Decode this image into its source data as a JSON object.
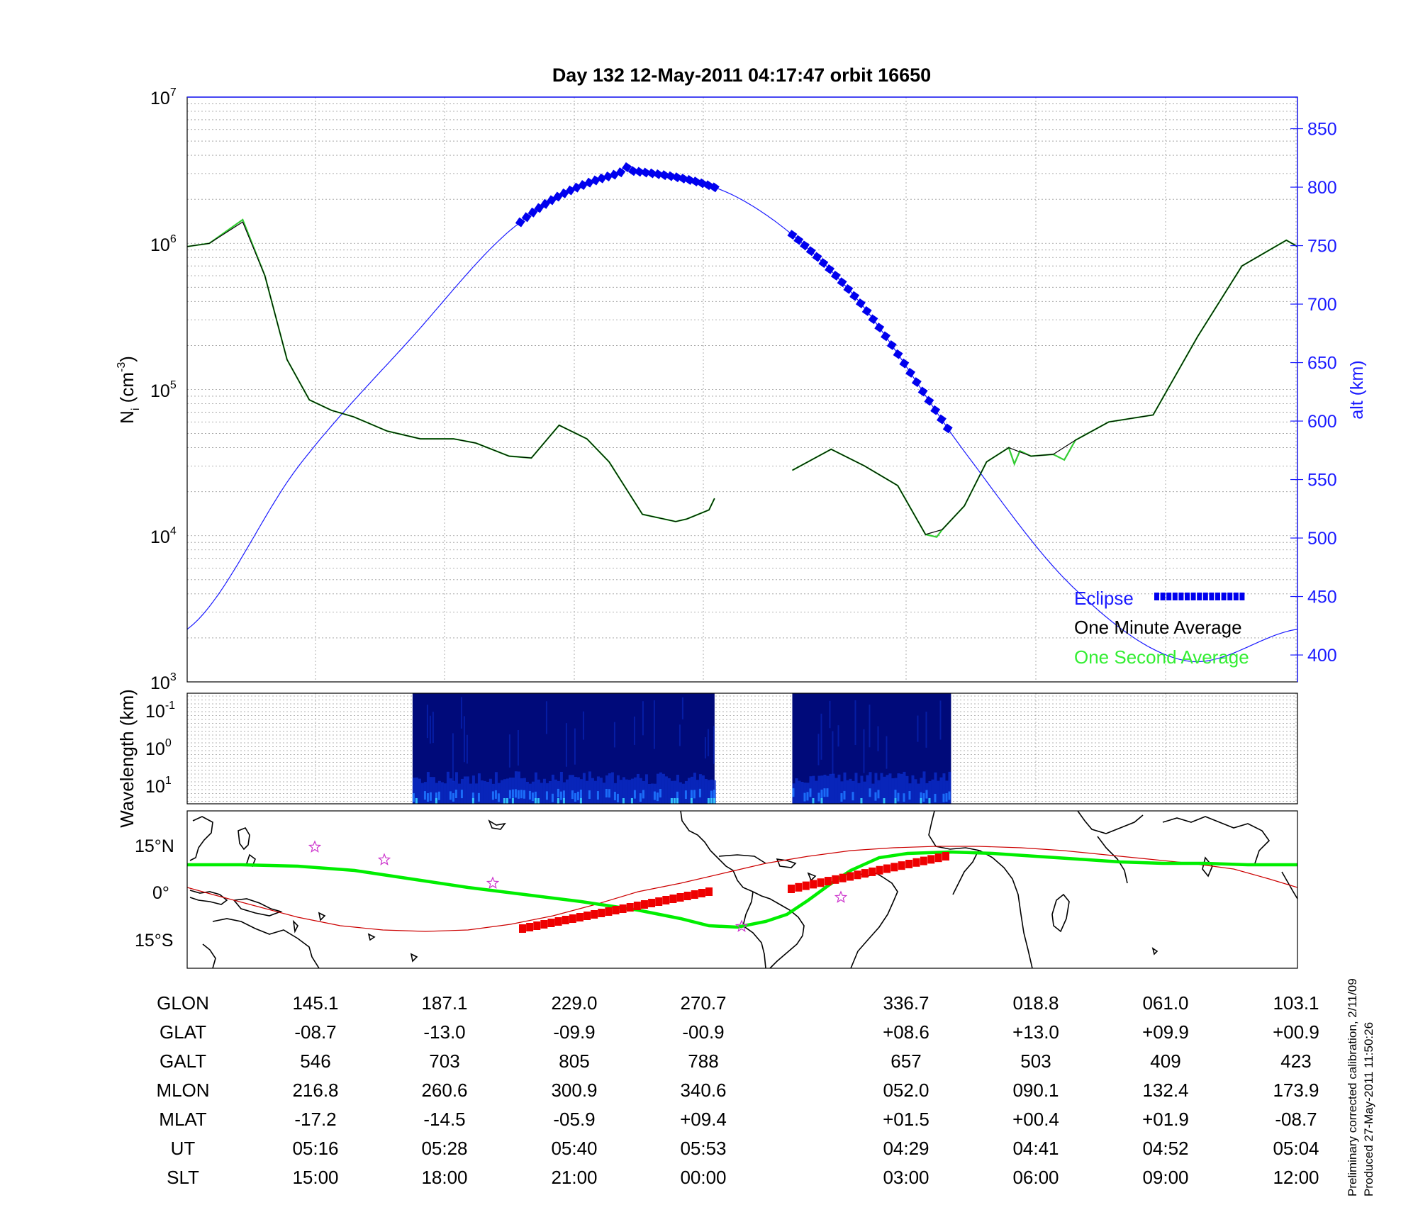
{
  "chart_data": [
    {
      "type": "line",
      "title": "Day 132  12-May-2011 04:17:47   orbit 16650",
      "ylabel": "N",
      "ylabel_sub": "i",
      "ylabel_unit": "(cm",
      "ylabel_unit_sup": "-3",
      "ylabel_unit_close": ")",
      "yscale": "log",
      "ylim": [
        1000,
        10000000
      ],
      "y_ticks": [
        {
          "base": "10",
          "exp": "3"
        },
        {
          "base": "10",
          "exp": "4"
        },
        {
          "base": "10",
          "exp": "5"
        },
        {
          "base": "10",
          "exp": "6"
        },
        {
          "base": "10",
          "exp": "7"
        }
      ],
      "y2label": "alt (km)",
      "y2lim": [
        377,
        877
      ],
      "y2_ticks": [
        "400",
        "450",
        "500",
        "550",
        "600",
        "650",
        "700",
        "750",
        "800",
        "850"
      ],
      "grid": true,
      "legend": {
        "position": "bottom-right",
        "entries": [
          "Eclipse",
          "One Minute Average",
          "One Second Average"
        ]
      },
      "series": [
        {
          "name": "One Minute Average",
          "color": "#000000",
          "segments": [
            [
              [
                0.0,
                950000
              ],
              [
                0.02,
                1000000
              ],
              [
                0.05,
                1400000
              ],
              [
                0.07,
                600000
              ],
              [
                0.09,
                160000
              ],
              [
                0.11,
                85000
              ],
              [
                0.13,
                72000
              ],
              [
                0.15,
                65000
              ],
              [
                0.18,
                52000
              ],
              [
                0.21,
                46000
              ],
              [
                0.24,
                46000
              ],
              [
                0.26,
                43000
              ],
              [
                0.29,
                35000
              ],
              [
                0.31,
                34000
              ],
              [
                0.335,
                57000
              ],
              [
                0.36,
                46000
              ],
              [
                0.38,
                32000
              ],
              [
                0.41,
                14000
              ],
              [
                0.44,
                12500
              ],
              [
                0.45,
                13000
              ],
              [
                0.47,
                15000
              ],
              [
                0.475,
                18000
              ]
            ],
            [
              [
                0.545,
                28000
              ],
              [
                0.58,
                39000
              ],
              [
                0.61,
                30000
              ],
              [
                0.64,
                22000
              ],
              [
                0.665,
                10200
              ],
              [
                0.68,
                11000
              ],
              [
                0.7,
                16000
              ],
              [
                0.72,
                32000
              ],
              [
                0.74,
                40000
              ],
              [
                0.76,
                35000
              ],
              [
                0.78,
                36000
              ],
              [
                0.8,
                45000
              ],
              [
                0.83,
                60000
              ],
              [
                0.87,
                67000
              ],
              [
                0.91,
                230000
              ],
              [
                0.95,
                700000
              ],
              [
                0.99,
                1050000
              ],
              [
                1.0,
                950000
              ]
            ]
          ]
        },
        {
          "name": "One Second Average",
          "color": "#33cc33",
          "segments": [
            [
              [
                0.0,
                950000
              ],
              [
                0.02,
                1000000
              ],
              [
                0.05,
                1450000
              ],
              [
                0.07,
                600000
              ],
              [
                0.09,
                160000
              ],
              [
                0.11,
                85000
              ],
              [
                0.13,
                72000
              ],
              [
                0.15,
                65000
              ],
              [
                0.18,
                52000
              ],
              [
                0.21,
                46000
              ],
              [
                0.24,
                46000
              ],
              [
                0.26,
                43000
              ],
              [
                0.29,
                35000
              ],
              [
                0.31,
                34000
              ],
              [
                0.335,
                57000
              ],
              [
                0.36,
                46000
              ],
              [
                0.38,
                32000
              ],
              [
                0.41,
                14000
              ],
              [
                0.44,
                12500
              ],
              [
                0.45,
                13000
              ],
              [
                0.47,
                15000
              ],
              [
                0.475,
                18000
              ]
            ],
            [
              [
                0.545,
                28000
              ],
              [
                0.58,
                39000
              ],
              [
                0.61,
                30000
              ],
              [
                0.64,
                22000
              ],
              [
                0.665,
                10200
              ],
              [
                0.675,
                9800
              ],
              [
                0.68,
                11000
              ],
              [
                0.7,
                16000
              ],
              [
                0.72,
                32000
              ],
              [
                0.74,
                40000
              ],
              [
                0.745,
                31000
              ],
              [
                0.75,
                38000
              ],
              [
                0.76,
                35000
              ],
              [
                0.78,
                36000
              ],
              [
                0.79,
                33000
              ],
              [
                0.8,
                45000
              ],
              [
                0.83,
                60000
              ],
              [
                0.87,
                67000
              ],
              [
                0.91,
                230000
              ],
              [
                0.95,
                700000
              ],
              [
                0.99,
                1050000
              ],
              [
                1.0,
                950000
              ]
            ]
          ]
        },
        {
          "name": "alt",
          "axis": "right",
          "color": "#1a1aff",
          "points": [
            [
              0.0,
              422
            ],
            [
              0.1,
              561
            ],
            [
              0.2,
              669
            ],
            [
              0.3,
              770
            ],
            [
              0.39,
              812
            ],
            [
              0.4,
              814
            ],
            [
              0.5,
              789
            ],
            [
              0.6,
              708
            ],
            [
              0.7,
              574
            ],
            [
              0.8,
              456
            ],
            [
              0.9,
              395
            ],
            [
              1.0,
              422
            ]
          ]
        }
      ],
      "eclipse_segments": [
        [
          0.3,
          0.475
        ],
        [
          0.545,
          0.685
        ]
      ],
      "eclipse_color": "#0000ee"
    },
    {
      "type": "heatmap",
      "ylabel": "Wavelength (km)",
      "yscale": "log",
      "y_ticks": [
        {
          "base": "10",
          "exp": "-1"
        },
        {
          "base": "10",
          "exp": "0"
        },
        {
          "base": "10",
          "exp": "1"
        }
      ],
      "active_ranges": [
        [
          0.203,
          0.475
        ],
        [
          0.545,
          0.688
        ]
      ],
      "colors": [
        "#000a7a",
        "#0b2fd0",
        "#1e74ff",
        "#39d2ff"
      ]
    },
    {
      "type": "map",
      "y_ticks": [
        "15°N",
        "0°",
        "15°S"
      ],
      "track_color": "#00ee00",
      "magnetic_equator_color": "#cc0000",
      "eclipse_color": "#ee0000",
      "eclipse_segments": [
        [
          0.3,
          0.475
        ],
        [
          0.545,
          0.685
        ]
      ],
      "star_color": "#cc33cc"
    }
  ],
  "table": {
    "labels": [
      "GLON",
      "GLAT",
      "GALT",
      "MLON",
      "MLAT",
      "UT",
      "SLT"
    ],
    "columns": [
      [
        "145.1",
        "-08.7",
        "546",
        "216.8",
        "-17.2",
        "05:16",
        "15:00"
      ],
      [
        "187.1",
        "-13.0",
        "703",
        "260.6",
        "-14.5",
        "05:28",
        "18:00"
      ],
      [
        "229.0",
        "-09.9",
        "805",
        "300.9",
        "-05.9",
        "05:40",
        "21:00"
      ],
      [
        "270.7",
        "-00.9",
        "788",
        "340.6",
        "+09.4",
        "05:53",
        "00:00"
      ],
      [
        "336.7",
        "+08.6",
        "657",
        "052.0",
        "+01.5",
        "04:29",
        "03:00"
      ],
      [
        "018.8",
        "+13.0",
        "503",
        "090.1",
        "+00.4",
        "04:41",
        "06:00"
      ],
      [
        "061.0",
        "+09.9",
        "409",
        "132.4",
        "+01.9",
        "04:52",
        "09:00"
      ],
      [
        "103.1",
        "+00.9",
        "423",
        "173.9",
        "-08.7",
        "05:04",
        "12:00"
      ]
    ]
  },
  "notes": {
    "calibration": "Preliminary corrected calibration, 2/11/09",
    "produced": "Produced 27-May-2011 11:50:26"
  }
}
